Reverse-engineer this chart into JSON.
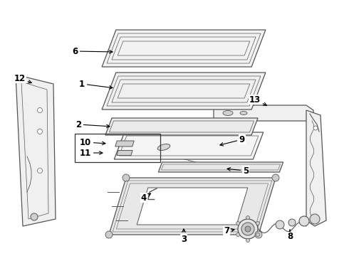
{
  "bg_color": "#ffffff",
  "line_color": "#555555",
  "label_color": "#000000",
  "fig_w": 4.9,
  "fig_h": 3.6,
  "dpi": 100
}
